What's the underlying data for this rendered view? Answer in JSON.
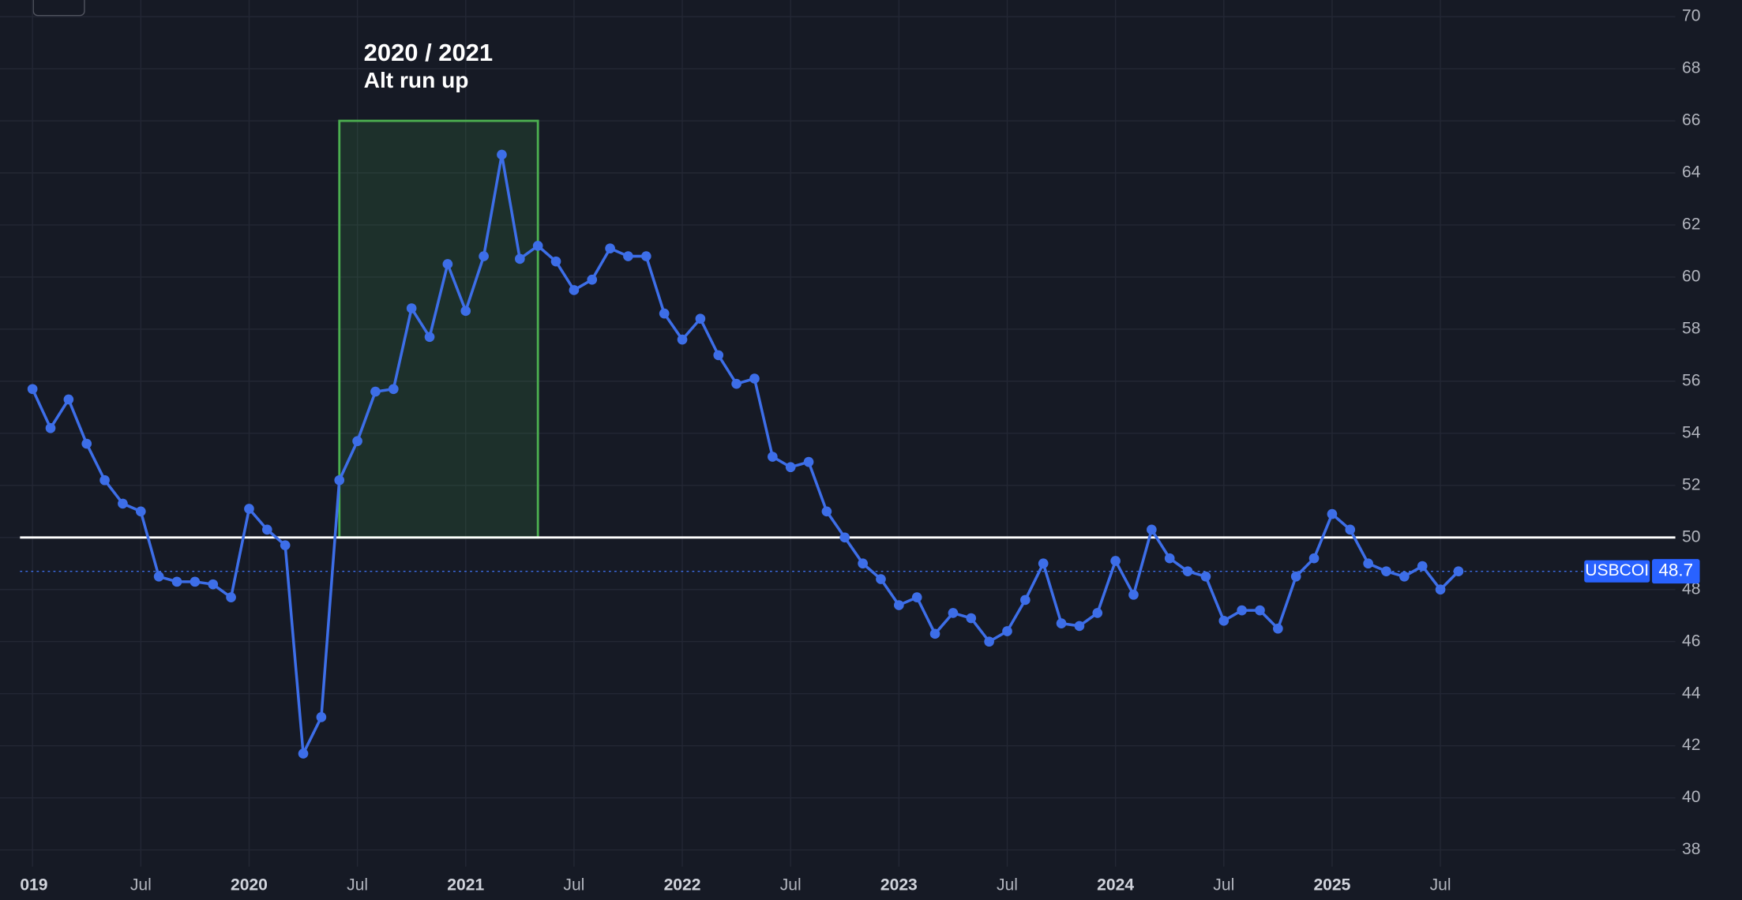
{
  "chart_data": {
    "type": "line",
    "x": [
      "2019-01",
      "2019-02",
      "2019-03",
      "2019-04",
      "2019-05",
      "2019-06",
      "2019-07",
      "2019-08",
      "2019-09",
      "2019-10",
      "2019-11",
      "2019-12",
      "2020-01",
      "2020-02",
      "2020-03",
      "2020-04",
      "2020-05",
      "2020-06",
      "2020-07",
      "2020-08",
      "2020-09",
      "2020-10",
      "2020-11",
      "2020-12",
      "2021-01",
      "2021-02",
      "2021-03",
      "2021-04",
      "2021-05",
      "2021-06",
      "2021-07",
      "2021-08",
      "2021-09",
      "2021-10",
      "2021-11",
      "2021-12",
      "2022-01",
      "2022-02",
      "2022-03",
      "2022-04",
      "2022-05",
      "2022-06",
      "2022-07",
      "2022-08",
      "2022-09",
      "2022-10",
      "2022-11",
      "2022-12",
      "2023-01",
      "2023-02",
      "2023-03",
      "2023-04",
      "2023-05",
      "2023-06",
      "2023-07",
      "2023-08",
      "2023-09",
      "2023-10",
      "2023-11",
      "2023-12",
      "2024-01",
      "2024-02",
      "2024-03",
      "2024-04",
      "2024-05",
      "2024-06",
      "2024-07",
      "2024-08",
      "2024-09",
      "2024-10",
      "2024-11",
      "2024-12",
      "2025-01",
      "2025-02",
      "2025-03",
      "2025-04",
      "2025-05",
      "2025-06",
      "2025-07",
      "2025-08"
    ],
    "series": [
      {
        "name": "USBCOI",
        "color": "#3d6ee8",
        "values": [
          55.7,
          54.2,
          55.3,
          53.6,
          52.2,
          51.3,
          51.0,
          48.5,
          48.3,
          48.3,
          48.2,
          47.7,
          51.1,
          50.3,
          49.7,
          41.7,
          43.1,
          52.2,
          53.7,
          55.6,
          55.7,
          58.8,
          57.7,
          60.5,
          58.7,
          60.8,
          64.7,
          60.7,
          61.2,
          60.6,
          59.5,
          59.9,
          61.1,
          60.8,
          60.8,
          58.6,
          57.6,
          58.4,
          57.0,
          55.9,
          56.1,
          53.1,
          52.7,
          52.9,
          51.0,
          50.0,
          49.0,
          48.4,
          47.4,
          47.7,
          46.3,
          47.1,
          46.9,
          46.0,
          46.4,
          47.6,
          49.0,
          46.7,
          46.6,
          47.1,
          49.1,
          47.8,
          50.3,
          49.2,
          48.7,
          48.5,
          46.8,
          47.2,
          47.2,
          46.5,
          48.5,
          49.2,
          50.9,
          50.3,
          49.0,
          48.7,
          48.5,
          48.9,
          48.0,
          48.7
        ]
      }
    ],
    "xlim": [
      "2018-12",
      "2026-07"
    ],
    "xticks": [
      {
        "value": "2019-01",
        "label": "019"
      },
      {
        "value": "2019-07",
        "label": "Jul"
      },
      {
        "value": "2020-01",
        "label": "2020"
      },
      {
        "value": "2020-07",
        "label": "Jul"
      },
      {
        "value": "2021-01",
        "label": "2021"
      },
      {
        "value": "2021-07",
        "label": "Jul"
      },
      {
        "value": "2022-01",
        "label": "2022"
      },
      {
        "value": "2022-07",
        "label": "Jul"
      },
      {
        "value": "2023-01",
        "label": "2023"
      },
      {
        "value": "2023-07",
        "label": "Jul"
      },
      {
        "value": "2024-01",
        "label": "2024"
      },
      {
        "value": "2024-07",
        "label": "Jul"
      },
      {
        "value": "2025-01",
        "label": "2025"
      },
      {
        "value": "2025-07",
        "label": "Jul"
      }
    ],
    "ylim": [
      37.4,
      70.6
    ],
    "yticks": [
      38,
      40,
      42,
      44,
      46,
      48,
      50,
      52,
      54,
      56,
      58,
      60,
      62,
      64,
      66,
      68,
      70
    ],
    "grid": true,
    "hline": 50,
    "annotation": {
      "title": "2020 / 2021",
      "subtitle": "Alt run up",
      "x": [
        "2020-06",
        "2021-05"
      ],
      "y": [
        50,
        66
      ],
      "color": "#4caf50"
    }
  }
}
